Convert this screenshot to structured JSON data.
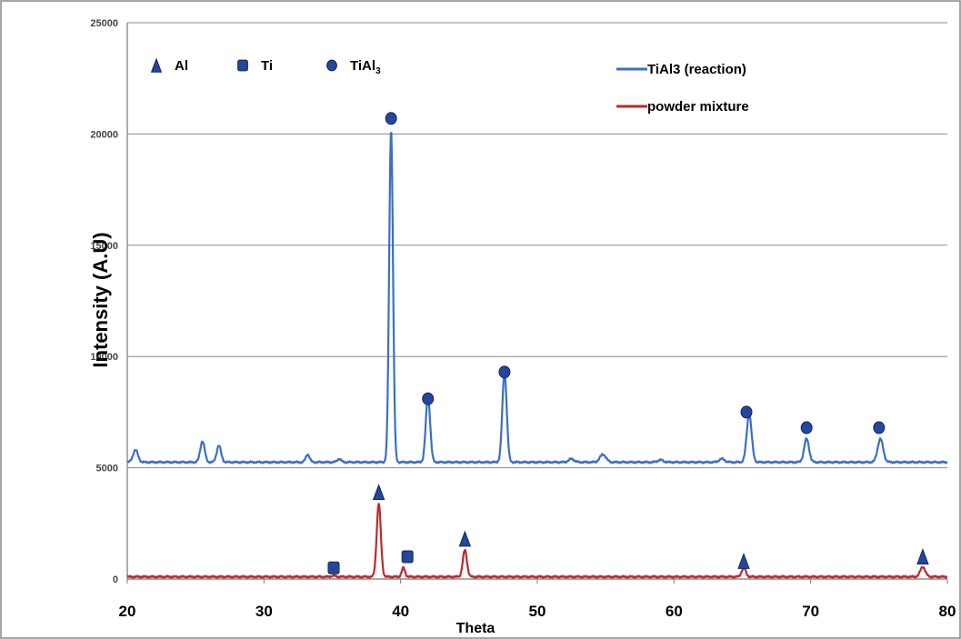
{
  "chart_data": {
    "type": "line",
    "xlabel": "Theta",
    "ylabel": "Intensity (A.U)",
    "xlim": [
      20,
      80
    ],
    "ylim": [
      0,
      25000
    ],
    "x_ticks": [
      "20",
      "30",
      "40",
      "50",
      "60",
      "70",
      "80"
    ],
    "y_ticks": [
      {
        "value": 0,
        "label": "0"
      },
      {
        "value": 5000,
        "label": "5000"
      },
      {
        "value": 10000,
        "label": "10000"
      },
      {
        "value": 15000,
        "label": "15000"
      },
      {
        "value": 20000,
        "label": "20000"
      },
      {
        "value": 25000,
        "label": "25000"
      }
    ],
    "grid": true,
    "legend_position": "top-right",
    "phase_legend": [
      {
        "symbol": "triangle",
        "label": "Al"
      },
      {
        "symbol": "square",
        "label": "Ti"
      },
      {
        "symbol": "circle",
        "label": "TiAl",
        "subscript": "3"
      }
    ],
    "series": [
      {
        "name": "TiAl3 (reaction)",
        "color": "#3a6fc4",
        "baseline": 5250,
        "points": [
          [
            20,
            5300
          ],
          [
            20.6,
            5800
          ],
          [
            25.5,
            6200
          ],
          [
            26.7,
            6000
          ],
          [
            33.2,
            5600
          ],
          [
            35.5,
            5400
          ],
          [
            39.3,
            20200
          ],
          [
            42.0,
            8200
          ],
          [
            47.6,
            9300
          ],
          [
            52.5,
            5400
          ],
          [
            54.8,
            5600
          ],
          [
            63.5,
            5400
          ],
          [
            65.5,
            7400
          ],
          [
            69.7,
            6300
          ],
          [
            75.1,
            6300
          ],
          [
            80,
            5200
          ]
        ],
        "peaks": [
          [
            20.6,
            5800,
            0.18
          ],
          [
            25.5,
            6200,
            0.16
          ],
          [
            26.7,
            6000,
            0.16
          ],
          [
            33.2,
            5600,
            0.14
          ],
          [
            35.5,
            5400,
            0.14
          ],
          [
            39.3,
            20200,
            0.14
          ],
          [
            42.0,
            8200,
            0.16
          ],
          [
            47.6,
            9300,
            0.16
          ],
          [
            52.5,
            5400,
            0.2
          ],
          [
            54.8,
            5600,
            0.22
          ],
          [
            59.0,
            5350,
            0.2
          ],
          [
            63.5,
            5400,
            0.2
          ],
          [
            65.5,
            7400,
            0.18
          ],
          [
            69.7,
            6300,
            0.18
          ],
          [
            75.1,
            6300,
            0.2
          ]
        ]
      },
      {
        "name": "powder mixture",
        "color": "#c0282d",
        "baseline": 100,
        "points": [
          [
            20,
            100
          ],
          [
            35.1,
            150
          ],
          [
            38.4,
            3400
          ],
          [
            40.2,
            500
          ],
          [
            44.7,
            1300
          ],
          [
            65.1,
            500
          ],
          [
            78.2,
            550
          ],
          [
            80,
            100
          ]
        ],
        "peaks": [
          [
            35.1,
            150,
            0.15
          ],
          [
            38.4,
            3400,
            0.15
          ],
          [
            40.2,
            500,
            0.12
          ],
          [
            44.7,
            1300,
            0.15
          ],
          [
            65.1,
            500,
            0.15
          ],
          [
            78.2,
            550,
            0.18
          ]
        ]
      }
    ],
    "markers": [
      {
        "symbol": "circle",
        "x": 39.3,
        "y": 20700
      },
      {
        "symbol": "circle",
        "x": 42.0,
        "y": 8100
      },
      {
        "symbol": "circle",
        "x": 47.6,
        "y": 9300
      },
      {
        "symbol": "circle",
        "x": 65.3,
        "y": 7500
      },
      {
        "symbol": "circle",
        "x": 69.7,
        "y": 6800
      },
      {
        "symbol": "circle",
        "x": 75.0,
        "y": 6800
      },
      {
        "symbol": "triangle",
        "x": 38.4,
        "y": 3900
      },
      {
        "symbol": "square",
        "x": 35.1,
        "y": 500
      },
      {
        "symbol": "square",
        "x": 40.5,
        "y": 1000
      },
      {
        "symbol": "triangle",
        "x": 44.7,
        "y": 1800
      },
      {
        "symbol": "triangle",
        "x": 65.1,
        "y": 800
      },
      {
        "symbol": "triangle",
        "x": 78.2,
        "y": 1000
      }
    ]
  }
}
